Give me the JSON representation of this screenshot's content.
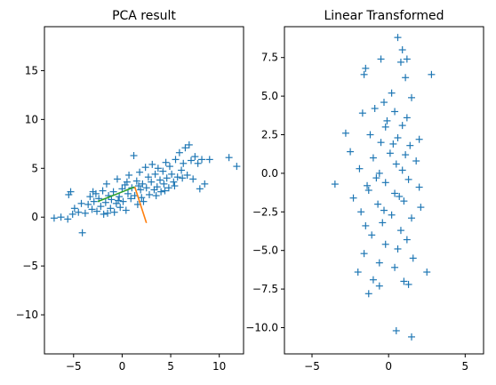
{
  "chart_data": [
    {
      "type": "scatter",
      "title": "PCA result",
      "xlabel": "",
      "ylabel": "",
      "xlim": [
        -8,
        12.5
      ],
      "ylim": [
        -14,
        19.5
      ],
      "xticks": [
        -5,
        0,
        5,
        10
      ],
      "xtick_labels": [
        "−5",
        "0",
        "5",
        "10"
      ],
      "yticks": [
        -10,
        -5,
        0,
        5,
        10,
        15
      ],
      "ytick_labels": [
        "−10",
        "−5",
        "0",
        "5",
        "10",
        "15"
      ],
      "grid": false,
      "marker": "+",
      "colors": {
        "points": "#1f77b4",
        "component_1": "#2ca02c",
        "component_2": "#ff7f0e"
      },
      "components": [
        {
          "x": [
            -2.5,
            1.3
          ],
          "y": [
            1.6,
            3.1
          ],
          "color": "#2ca02c"
        },
        {
          "x": [
            1.3,
            2.5
          ],
          "y": [
            3.1,
            -0.6
          ],
          "color": "#ff7f0e"
        }
      ],
      "points": [
        [
          -7.0,
          -0.1
        ],
        [
          -6.3,
          0.0
        ],
        [
          -5.6,
          -0.2
        ],
        [
          -5.1,
          0.3
        ],
        [
          -5.5,
          2.3
        ],
        [
          -5.3,
          2.6
        ],
        [
          -4.9,
          0.9
        ],
        [
          -4.5,
          0.5
        ],
        [
          -4.1,
          -1.6
        ],
        [
          -3.8,
          0.4
        ],
        [
          -3.5,
          1.3
        ],
        [
          -3.3,
          2.1
        ],
        [
          -3.1,
          0.8
        ],
        [
          -2.9,
          1.6
        ],
        [
          -2.7,
          2.4
        ],
        [
          -2.6,
          0.6
        ],
        [
          -2.4,
          1.9
        ],
        [
          -2.2,
          1.1
        ],
        [
          -2.0,
          2.7
        ],
        [
          -1.9,
          0.3
        ],
        [
          -1.7,
          1.5
        ],
        [
          -1.6,
          3.4
        ],
        [
          -1.4,
          2.2
        ],
        [
          -1.2,
          0.9
        ],
        [
          -1.1,
          1.8
        ],
        [
          -0.9,
          2.6
        ],
        [
          -0.8,
          0.5
        ],
        [
          -0.6,
          1.4
        ],
        [
          -0.5,
          3.9
        ],
        [
          -0.3,
          2.1
        ],
        [
          -0.2,
          1.0
        ],
        [
          0.0,
          2.9
        ],
        [
          0.1,
          1.6
        ],
        [
          0.3,
          3.3
        ],
        [
          0.4,
          0.7
        ],
        [
          0.6,
          2.4
        ],
        [
          0.7,
          4.3
        ],
        [
          0.9,
          1.9
        ],
        [
          1.0,
          3.0
        ],
        [
          1.2,
          6.3
        ],
        [
          1.3,
          2.2
        ],
        [
          1.5,
          3.7
        ],
        [
          1.6,
          1.3
        ],
        [
          1.8,
          4.6
        ],
        [
          1.9,
          2.8
        ],
        [
          2.1,
          3.4
        ],
        [
          2.2,
          1.6
        ],
        [
          2.4,
          5.1
        ],
        [
          2.5,
          3.0
        ],
        [
          2.7,
          4.1
        ],
        [
          2.8,
          2.3
        ],
        [
          3.0,
          3.6
        ],
        [
          3.1,
          5.4
        ],
        [
          3.3,
          2.8
        ],
        [
          3.4,
          4.4
        ],
        [
          3.6,
          3.1
        ],
        [
          3.7,
          5.0
        ],
        [
          3.9,
          3.8
        ],
        [
          4.0,
          2.6
        ],
        [
          4.2,
          4.7
        ],
        [
          4.3,
          3.4
        ],
        [
          4.5,
          5.6
        ],
        [
          4.6,
          4.0
        ],
        [
          4.8,
          3.0
        ],
        [
          4.9,
          5.2
        ],
        [
          5.1,
          4.4
        ],
        [
          5.3,
          3.6
        ],
        [
          5.5,
          5.9
        ],
        [
          5.7,
          4.1
        ],
        [
          5.9,
          6.6
        ],
        [
          6.1,
          4.8
        ],
        [
          6.3,
          5.5
        ],
        [
          6.5,
          7.1
        ],
        [
          6.7,
          4.3
        ],
        [
          6.9,
          7.4
        ],
        [
          7.1,
          5.8
        ],
        [
          7.3,
          3.9
        ],
        [
          7.5,
          6.2
        ],
        [
          7.8,
          5.5
        ],
        [
          8.0,
          2.9
        ],
        [
          8.2,
          5.9
        ],
        [
          8.5,
          3.4
        ],
        [
          9.0,
          5.9
        ],
        [
          11.0,
          6.1
        ],
        [
          11.8,
          5.2
        ],
        [
          -4.2,
          1.4
        ],
        [
          -3.0,
          2.6
        ],
        [
          -1.5,
          0.4
        ],
        [
          0.5,
          3.6
        ],
        [
          2.0,
          2.0
        ],
        [
          3.5,
          2.2
        ],
        [
          4.4,
          2.7
        ],
        [
          5.4,
          3.2
        ],
        [
          6.2,
          4.0
        ],
        [
          -0.4,
          1.7
        ],
        [
          1.7,
          3.2
        ]
      ]
    },
    {
      "type": "scatter",
      "title": "Linear Transformed",
      "xlabel": "",
      "ylabel": "",
      "xlim": [
        -6.8,
        6.2
      ],
      "ylim": [
        -11.7,
        9.5
      ],
      "xticks": [
        -5,
        0,
        5
      ],
      "xtick_labels": [
        "−5",
        "0",
        "5"
      ],
      "yticks": [
        -10,
        -7.5,
        -5,
        -2.5,
        0,
        2.5,
        5,
        7.5
      ],
      "ytick_labels": [
        "−10.0",
        "−7.5",
        "−5.0",
        "−2.5",
        "0.0",
        "2.5",
        "5.0",
        "7.5"
      ],
      "grid": false,
      "marker": "+",
      "colors": {
        "points": "#1f77b4"
      },
      "points": [
        [
          0.6,
          8.8
        ],
        [
          0.9,
          8.0
        ],
        [
          1.2,
          7.4
        ],
        [
          0.8,
          7.2
        ],
        [
          -0.5,
          7.4
        ],
        [
          -1.5,
          6.8
        ],
        [
          -1.6,
          6.4
        ],
        [
          2.8,
          6.4
        ],
        [
          1.1,
          6.2
        ],
        [
          0.2,
          5.2
        ],
        [
          -0.3,
          4.6
        ],
        [
          1.5,
          4.9
        ],
        [
          -0.9,
          4.2
        ],
        [
          0.4,
          4.0
        ],
        [
          -1.7,
          3.9
        ],
        [
          1.2,
          3.6
        ],
        [
          -0.1,
          3.4
        ],
        [
          0.9,
          3.1
        ],
        [
          -2.8,
          2.6
        ],
        [
          -1.2,
          2.5
        ],
        [
          0.6,
          2.3
        ],
        [
          2.0,
          2.2
        ],
        [
          -0.5,
          2.0
        ],
        [
          1.4,
          1.8
        ],
        [
          -2.5,
          1.4
        ],
        [
          0.1,
          1.3
        ],
        [
          -1.0,
          1.0
        ],
        [
          1.8,
          0.8
        ],
        [
          0.5,
          0.6
        ],
        [
          -1.9,
          0.3
        ],
        [
          0.9,
          0.2
        ],
        [
          -0.6,
          0.0
        ],
        [
          -3.5,
          -0.7
        ],
        [
          1.3,
          -0.4
        ],
        [
          -0.2,
          -0.6
        ],
        [
          2.0,
          -0.9
        ],
        [
          -1.3,
          -1.1
        ],
        [
          0.4,
          -1.3
        ],
        [
          -2.3,
          -1.6
        ],
        [
          1.0,
          -1.8
        ],
        [
          -0.7,
          -2.0
        ],
        [
          2.1,
          -2.2
        ],
        [
          -1.8,
          -2.5
        ],
        [
          0.2,
          -2.7
        ],
        [
          1.5,
          -2.9
        ],
        [
          -0.4,
          -3.2
        ],
        [
          -1.5,
          -3.4
        ],
        [
          0.8,
          -3.7
        ],
        [
          -1.1,
          -4.0
        ],
        [
          1.2,
          -4.3
        ],
        [
          -0.2,
          -4.6
        ],
        [
          0.6,
          -4.9
        ],
        [
          -1.6,
          -5.2
        ],
        [
          1.6,
          -5.5
        ],
        [
          -0.6,
          -5.8
        ],
        [
          0.4,
          -6.1
        ],
        [
          -2.0,
          -6.4
        ],
        [
          2.5,
          -6.4
        ],
        [
          -1.0,
          -6.9
        ],
        [
          -0.6,
          -7.3
        ],
        [
          1.0,
          -7.0
        ],
        [
          -1.3,
          -7.8
        ],
        [
          1.3,
          -7.2
        ],
        [
          0.5,
          -10.2
        ],
        [
          1.5,
          -10.6
        ],
        [
          -0.2,
          3.0
        ],
        [
          0.3,
          1.9
        ],
        [
          -0.8,
          -0.3
        ],
        [
          0.7,
          -1.5
        ],
        [
          -0.3,
          -2.4
        ],
        [
          1.1,
          1.2
        ],
        [
          -1.4,
          -0.8
        ]
      ]
    }
  ]
}
